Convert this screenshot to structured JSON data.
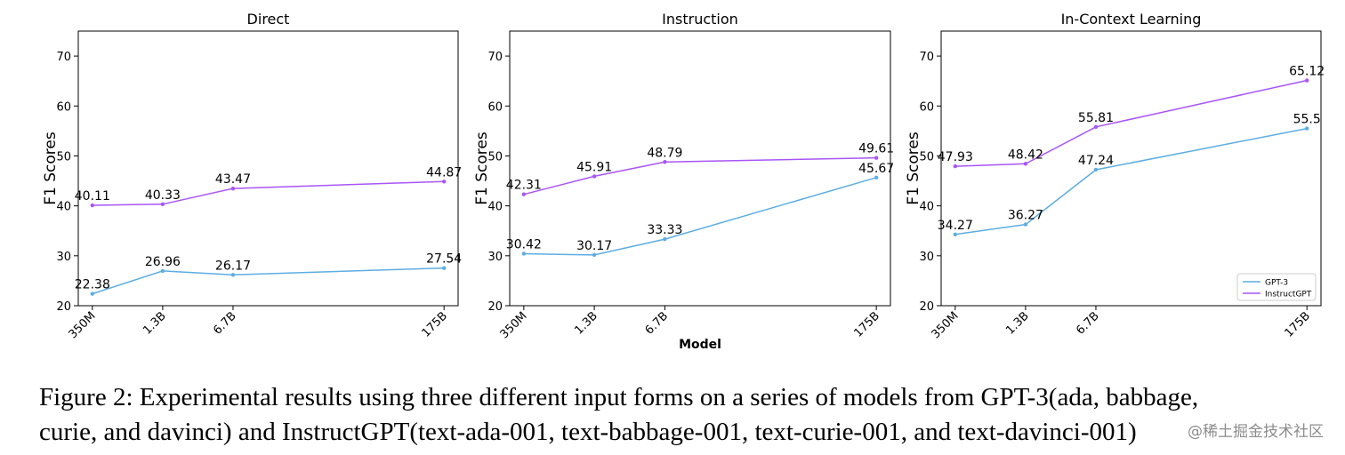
{
  "colors": {
    "gpt3": "#5dade2",
    "instructgpt": "#a855f7"
  },
  "chart_data": [
    {
      "type": "line",
      "title": "Direct",
      "xlabel": "",
      "ylabel": "F1 Scores",
      "categories": [
        "350M",
        "1.3B",
        "6.7B",
        "175B"
      ],
      "x_positions": [
        0,
        1,
        2,
        5
      ],
      "ylim": [
        20,
        75
      ],
      "yticks": [
        20,
        30,
        40,
        50,
        60,
        70
      ],
      "grid": false,
      "legend": "none",
      "series": [
        {
          "name": "GPT-3",
          "values": [
            22.38,
            26.96,
            26.17,
            27.54
          ],
          "labels": [
            "22.38",
            "26.96",
            "26.17",
            "27.54"
          ]
        },
        {
          "name": "InstructGPT",
          "values": [
            40.11,
            40.33,
            43.47,
            44.87
          ],
          "labels": [
            "40.11",
            "40.33",
            "43.47",
            "44.87"
          ]
        }
      ]
    },
    {
      "type": "line",
      "title": "Instruction",
      "xlabel": "Model",
      "ylabel": "F1 Scores",
      "categories": [
        "350M",
        "1.3B",
        "6.7B",
        "175B"
      ],
      "x_positions": [
        0,
        1,
        2,
        5
      ],
      "ylim": [
        20,
        75
      ],
      "yticks": [
        20,
        30,
        40,
        50,
        60,
        70
      ],
      "grid": false,
      "legend": "none",
      "series": [
        {
          "name": "GPT-3",
          "values": [
            30.42,
            30.17,
            33.33,
            45.67
          ],
          "labels": [
            "30.42",
            "30.17",
            "33.33",
            "45.67"
          ]
        },
        {
          "name": "InstructGPT",
          "values": [
            42.31,
            45.91,
            48.79,
            49.61
          ],
          "labels": [
            "42.31",
            "45.91",
            "48.79",
            "49.61"
          ]
        }
      ]
    },
    {
      "type": "line",
      "title": "In-Context Learning",
      "xlabel": "",
      "ylabel": "F1 Scores",
      "categories": [
        "350M",
        "1.3B",
        "6.7B",
        "175B"
      ],
      "x_positions": [
        0,
        1,
        2,
        5
      ],
      "ylim": [
        20,
        75
      ],
      "yticks": [
        20,
        30,
        40,
        50,
        60,
        70
      ],
      "grid": false,
      "legend": "bottom-right",
      "series": [
        {
          "name": "GPT-3",
          "values": [
            34.27,
            36.27,
            47.24,
            55.5
          ],
          "labels": [
            "34.27",
            "36.27",
            "47.24",
            "55.5"
          ]
        },
        {
          "name": "InstructGPT",
          "values": [
            47.93,
            48.42,
            55.81,
            65.12
          ],
          "labels": [
            "47.93",
            "48.42",
            "55.81",
            "65.12"
          ]
        }
      ]
    }
  ],
  "caption": {
    "line1": "Figure 2: Experimental results using three different input forms on a series of models from GPT-3(ada, babbage,",
    "line2": "curie, and davinci) and InstructGPT(text-ada-001, text-babbage-001, text-curie-001, and text-davinci-001)"
  },
  "watermark": "@稀土掘金技术社区"
}
